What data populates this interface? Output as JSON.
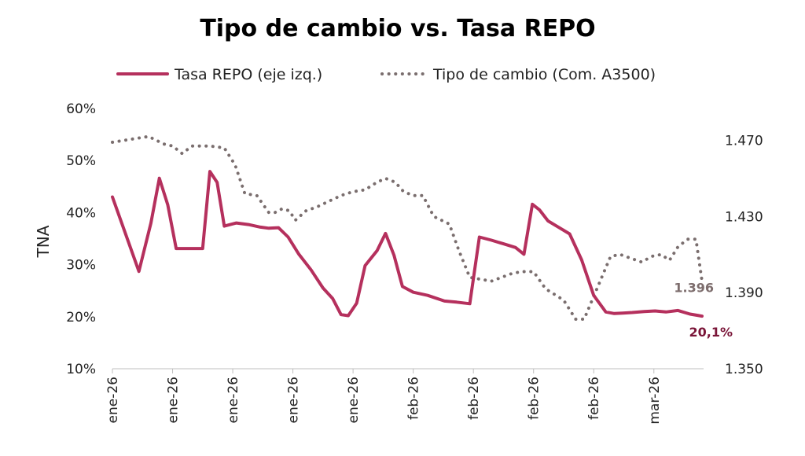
{
  "chart_data": {
    "type": "line",
    "title": "Tipo de cambio vs. Tasa REPO",
    "ylabel": "TNA",
    "ylim_left": [
      0.1,
      0.6
    ],
    "ylim_right": [
      1350,
      1490
    ],
    "left_ticks": [
      "10%",
      "20%",
      "30%",
      "40%",
      "50%",
      "60%"
    ],
    "left_tick_values": [
      0.1,
      0.2,
      0.3,
      0.4,
      0.5,
      0.6
    ],
    "right_ticks": [
      "1.350",
      "1.390",
      "1.430",
      "1.470"
    ],
    "right_tick_values": [
      1350,
      1390,
      1430,
      1470
    ],
    "x_range": [
      0,
      49
    ],
    "x_tick_positions": [
      0,
      5,
      10,
      15,
      20,
      25,
      30,
      35,
      40,
      45
    ],
    "x_tick_labels": [
      "ene-26",
      "ene-26",
      "ene-26",
      "ene-26",
      "ene-26",
      "feb-26",
      "feb-26",
      "feb-26",
      "feb-26",
      "mar-26"
    ],
    "legend_placement": "top",
    "colors": {
      "repo": "#b5305d",
      "fx": "#7a6e6e",
      "repo_label": "#7a1538",
      "fx_label": "#7d6d6d"
    },
    "series": [
      {
        "name": "Tasa REPO (eje izq.)",
        "axis": "left",
        "style": "solid",
        "x": [
          0,
          2.2,
          3.2,
          3.9,
          4.6,
          5.3,
          6.0,
          6.8,
          7.5,
          8.1,
          8.7,
          9.3,
          10.3,
          11.3,
          12.3,
          13.0,
          13.8,
          14.6,
          15.5,
          16.5,
          17.5,
          18.3,
          19.0,
          19.6,
          20.3,
          21.0,
          22.0,
          22.7,
          23.4,
          24.1,
          25.0,
          26.2,
          27.6,
          28.6,
          29.7,
          30.5,
          31.5,
          32.5,
          33.5,
          34.2,
          34.9,
          35.5,
          36.2,
          37.0,
          38.0,
          39.0,
          40.0,
          41.0,
          41.7,
          42.4,
          43.2,
          44.2,
          45.1,
          46.0,
          47.0,
          48.0,
          49.0
        ],
        "values": [
          0.43,
          0.287,
          0.38,
          0.466,
          0.415,
          0.331,
          0.331,
          0.331,
          0.331,
          0.479,
          0.458,
          0.374,
          0.38,
          0.377,
          0.372,
          0.37,
          0.371,
          0.353,
          0.32,
          0.29,
          0.255,
          0.235,
          0.204,
          0.202,
          0.226,
          0.298,
          0.327,
          0.36,
          0.318,
          0.258,
          0.247,
          0.241,
          0.23,
          0.228,
          0.225,
          0.353,
          0.347,
          0.34,
          0.333,
          0.32,
          0.416,
          0.405,
          0.384,
          0.373,
          0.359,
          0.309,
          0.241,
          0.209,
          0.206,
          0.207,
          0.208,
          0.21,
          0.211,
          0.209,
          0.212,
          0.205,
          0.201
        ]
      },
      {
        "name": "Tipo de cambio (Com. A3500)",
        "axis": "right",
        "style": "dotted",
        "x": [
          0,
          2.0,
          3.0,
          4.3,
          5.0,
          5.8,
          6.6,
          7.4,
          8.1,
          9.3,
          10.2,
          11.0,
          12.0,
          13.0,
          13.5,
          14.1,
          14.7,
          15.2,
          16.1,
          17.0,
          18.0,
          19.0,
          20.0,
          21.0,
          22.0,
          22.7,
          23.5,
          24.2,
          25.0,
          25.8,
          26.7,
          28.0,
          28.8,
          29.7,
          31.5,
          33.2,
          34.0,
          35.0,
          36.0,
          37.5,
          38.5,
          39.2,
          40.0,
          40.6,
          41.4,
          42.2,
          43.1,
          44.0,
          44.8,
          45.6,
          46.3,
          47.0,
          47.8,
          48.5,
          49.0
        ],
        "values": [
          1469,
          1471,
          1472,
          1468,
          1467,
          1463,
          1467,
          1467,
          1467,
          1466,
          1457,
          1442,
          1441,
          1432,
          1432,
          1434,
          1433,
          1428,
          1433,
          1435,
          1438,
          1441,
          1443,
          1444,
          1448,
          1450,
          1448,
          1443,
          1441,
          1441,
          1430,
          1426,
          1412,
          1398,
          1396,
          1400,
          1401,
          1401,
          1392,
          1386,
          1376,
          1376,
          1388,
          1397,
          1409,
          1410,
          1408,
          1406,
          1409,
          1410,
          1407,
          1414,
          1418,
          1418,
          1396
        ]
      }
    ],
    "end_labels": {
      "repo": "20,1%",
      "fx": "1.396"
    }
  }
}
